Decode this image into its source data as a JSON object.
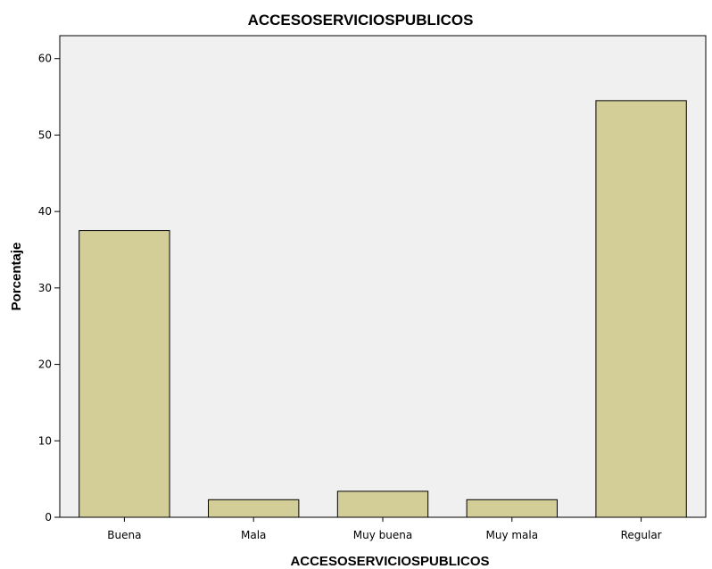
{
  "chart_data": {
    "type": "bar",
    "title": "ACCESOSERVICIOSPUBLICOS",
    "xlabel": "ACCESOSERVICIOSPUBLICOS",
    "ylabel": "Porcentaje",
    "categories": [
      "Buena",
      "Mala",
      "Muy buena",
      "Muy mala",
      "Regular"
    ],
    "values": [
      37.5,
      2.3,
      3.4,
      2.3,
      54.5
    ],
    "ylim": [
      0,
      63
    ],
    "yticks": [
      "0",
      "10",
      "20",
      "30",
      "40",
      "50",
      "60"
    ],
    "grid": false,
    "legend": "none",
    "colors": {
      "bar_fill": "#d3ce97",
      "bar_stroke": "#000000",
      "plot_background": "#f0f0f0"
    }
  }
}
